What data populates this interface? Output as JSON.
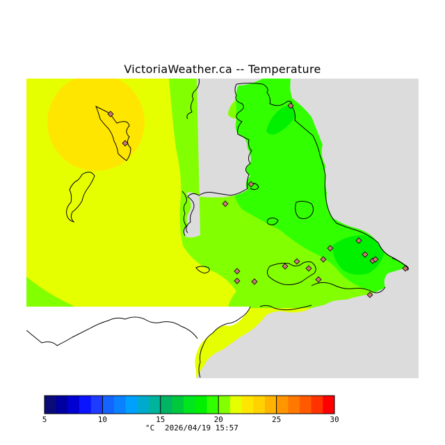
{
  "header": {
    "title": "VictoriaWeather.ca -- Temperature"
  },
  "legend": {
    "unit": "°C",
    "timestamp": "2026/04/19 15:57",
    "min": 5,
    "max": 30,
    "tick_labels": [
      "5",
      "10",
      "15",
      "20",
      "25",
      "30"
    ],
    "colors": [
      "#0a0a78",
      "#0000a0",
      "#0000d2",
      "#0a14ff",
      "#1e3cff",
      "#1464ff",
      "#0a82ff",
      "#00a0ff",
      "#00aacc",
      "#00b49b",
      "#00b464",
      "#00c83c",
      "#00e61e",
      "#00f000",
      "#32ff00",
      "#82ff00",
      "#e6ff00",
      "#ffe600",
      "#ffd200",
      "#ffb400",
      "#ff9600",
      "#ff7800",
      "#ff5a00",
      "#ff3200",
      "#ff0000"
    ]
  },
  "map": {
    "colors": {
      "no_data": "#dcdcdc",
      "land_outside": "#ffffff",
      "t_18_19": "#32ff00",
      "t_19_20": "#82ff00",
      "t_20_21": "#e6ff00",
      "t_21_22": "#ffe600",
      "t_17_18": "#00f000",
      "coast": "#000000",
      "station": "#c87878"
    },
    "stations": [
      {
        "temp": 22
      },
      {
        "temp": 22
      },
      {
        "temp": 19
      },
      {
        "temp": 18
      },
      {
        "temp": 19
      },
      {
        "temp": 20
      },
      {
        "temp": 20
      },
      {
        "temp": 19
      },
      {
        "temp": 19
      },
      {
        "temp": 19
      },
      {
        "temp": 19
      },
      {
        "temp": 18
      },
      {
        "temp": 19
      },
      {
        "temp": 18
      },
      {
        "temp": 17
      },
      {
        "temp": 18
      },
      {
        "temp": 18
      },
      {
        "temp": 18
      },
      {
        "temp": 17
      }
    ]
  }
}
